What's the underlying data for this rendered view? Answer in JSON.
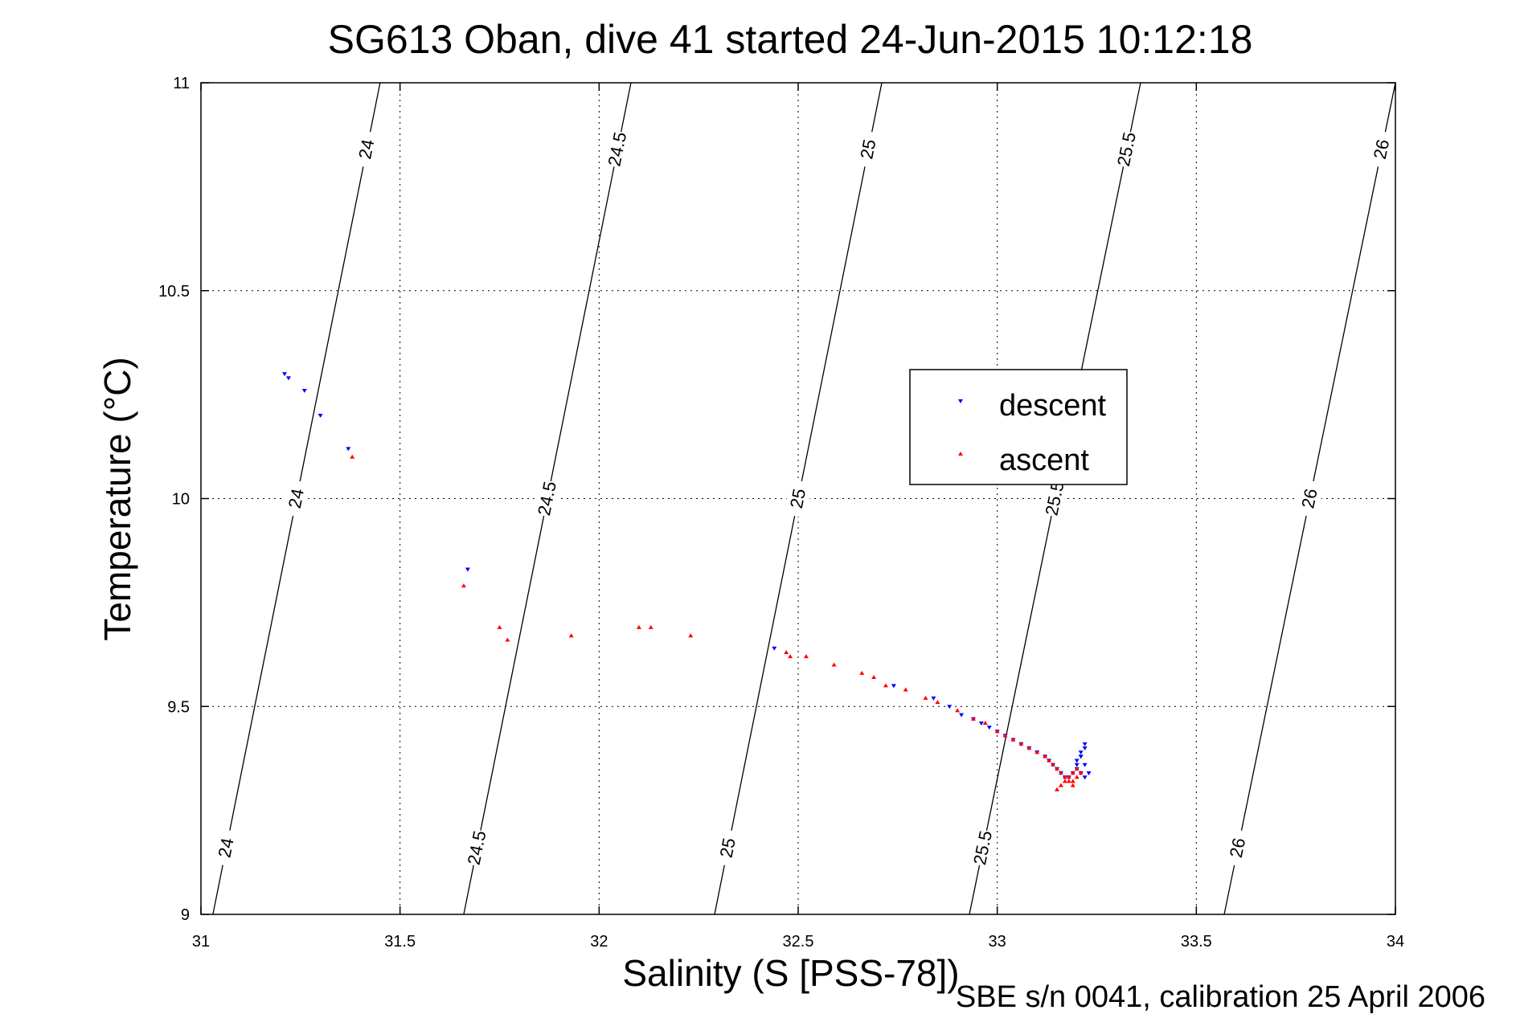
{
  "chart_data": {
    "type": "scatter",
    "title": "SG613 Oban, dive 41 started 24-Jun-2015 10:12:18",
    "xlabel": "Salinity (S [PSS-78])",
    "ylabel": "Temperature (°C)",
    "footnote": "SBE s/n 0041, calibration 25 April 2006",
    "xlim": [
      31,
      34
    ],
    "ylim": [
      9,
      11
    ],
    "xticks": [
      "31",
      "31.5",
      "32",
      "32.5",
      "33",
      "33.5",
      "34"
    ],
    "yticks": [
      "9",
      "9.5",
      "10",
      "10.5",
      "11"
    ],
    "grid": true,
    "legend_position": "center-right",
    "density_contours": [
      {
        "label": "24",
        "bottom_s": 31.03,
        "top_s": 31.45
      },
      {
        "label": "24.5",
        "bottom_s": 31.66,
        "top_s": 32.08
      },
      {
        "label": "25",
        "bottom_s": 32.29,
        "top_s": 32.71
      },
      {
        "label": "25.5",
        "bottom_s": 32.93,
        "top_s": 33.36
      },
      {
        "label": "26",
        "bottom_s": 33.57,
        "top_s": 34.0
      }
    ],
    "series": [
      {
        "name": "descent",
        "color": "#0000ff",
        "marker": "triangle-down",
        "x": [
          31.21,
          31.22,
          31.26,
          31.3,
          31.37,
          31.67,
          32.44,
          32.74,
          32.84,
          32.88,
          32.91,
          32.94,
          32.96,
          32.98,
          33.0,
          33.02,
          33.04,
          33.06,
          33.08,
          33.1,
          33.12,
          33.13,
          33.14,
          33.15,
          33.16,
          33.17,
          33.18,
          33.19,
          33.2,
          33.21,
          33.22,
          33.22,
          33.21,
          33.2,
          33.2,
          33.21,
          33.22,
          33.23,
          33.22,
          33.21
        ],
        "y": [
          10.3,
          10.29,
          10.26,
          10.2,
          10.12,
          9.83,
          9.64,
          9.55,
          9.52,
          9.5,
          9.48,
          9.47,
          9.46,
          9.45,
          9.44,
          9.43,
          9.42,
          9.41,
          9.4,
          9.39,
          9.38,
          9.37,
          9.36,
          9.35,
          9.34,
          9.33,
          9.33,
          9.34,
          9.36,
          9.38,
          9.4,
          9.41,
          9.39,
          9.37,
          9.35,
          9.34,
          9.33,
          9.34,
          9.36,
          9.38
        ]
      },
      {
        "name": "ascent",
        "color": "#ff0000",
        "marker": "triangle-up",
        "x": [
          31.38,
          31.66,
          31.75,
          31.77,
          31.93,
          32.1,
          32.13,
          32.23,
          32.47,
          32.48,
          32.52,
          32.59,
          32.66,
          32.69,
          32.72,
          32.77,
          32.82,
          32.85,
          32.9,
          32.94,
          32.97,
          33.0,
          33.02,
          33.04,
          33.06,
          33.08,
          33.1,
          33.12,
          33.13,
          33.14,
          33.15,
          33.16,
          33.17,
          33.18,
          33.19,
          33.19,
          33.2,
          33.21,
          33.2,
          33.19,
          33.18,
          33.17,
          33.16,
          33.15
        ],
        "y": [
          10.1,
          9.79,
          9.69,
          9.66,
          9.67,
          9.69,
          9.69,
          9.67,
          9.63,
          9.62,
          9.62,
          9.6,
          9.58,
          9.57,
          9.55,
          9.54,
          9.52,
          9.51,
          9.49,
          9.47,
          9.46,
          9.44,
          9.43,
          9.42,
          9.41,
          9.4,
          9.39,
          9.38,
          9.37,
          9.36,
          9.35,
          9.34,
          9.33,
          9.32,
          9.31,
          9.32,
          9.33,
          9.34,
          9.35,
          9.34,
          9.33,
          9.32,
          9.31,
          9.3
        ]
      }
    ]
  }
}
